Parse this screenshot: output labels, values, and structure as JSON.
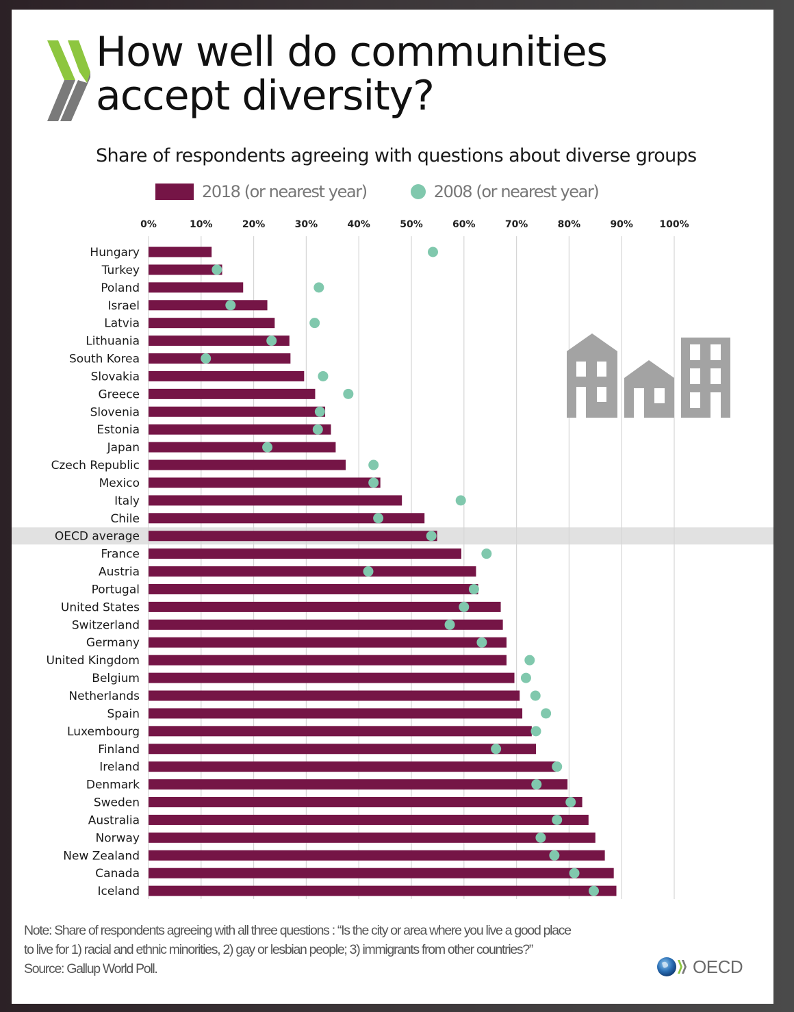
{
  "header": {
    "title_line1": "How well do communities",
    "title_line2": "accept diversity?",
    "subtitle": "Share of respondents agreeing with questions about diverse groups"
  },
  "legend": {
    "series_2018": "2018 (or nearest year)",
    "series_2008": "2008 (or nearest year)"
  },
  "colors": {
    "bar_2018": "#751546",
    "dot_2008": "#80c8ad",
    "highlight_band": "#e1e1e1",
    "gridline": "#d6d6d6",
    "building_icon": "#a3a3a3",
    "logo_green": "#8dc63f",
    "logo_gray": "#7a7a7a"
  },
  "chart_data": {
    "type": "bar",
    "orientation": "horizontal",
    "title": "How well do communities accept diversity?",
    "subtitle": "Share of respondents agreeing with questions about diverse groups",
    "xlabel": "",
    "ylabel": "",
    "xlim": [
      0,
      100
    ],
    "x_ticks": [
      "0%",
      "10%",
      "20%",
      "30%",
      "40%",
      "50%",
      "60%",
      "70%",
      "80%",
      "90%",
      "100%"
    ],
    "grid": true,
    "legend_position": "top",
    "highlight_category": "OECD average",
    "categories": [
      "Hungary",
      "Turkey",
      "Poland",
      "Israel",
      "Latvia",
      "Lithuania",
      "South Korea",
      "Slovakia",
      "Greece",
      "Slovenia",
      "Estonia",
      "Japan",
      "Czech Republic",
      "Mexico",
      "Italy",
      "Chile",
      "OECD average",
      "France",
      "Austria",
      "Portugal",
      "United States",
      "Switzerland",
      "Germany",
      "United Kingdom",
      "Belgium",
      "Netherlands",
      "Spain",
      "Luxembourg",
      "Finland",
      "Ireland",
      "Denmark",
      "Sweden",
      "Australia",
      "Norway",
      "New Zealand",
      "Canada",
      "Iceland"
    ],
    "series": [
      {
        "name": "2018 (or nearest year)",
        "mark": "bar",
        "values": [
          12,
          14,
          18,
          22.6,
          24,
          26.8,
          27,
          29.6,
          31.7,
          33.6,
          34.7,
          35.6,
          37.5,
          44.1,
          48.2,
          52.5,
          54.9,
          59.5,
          62.3,
          62.7,
          67,
          67.4,
          68.1,
          68.1,
          69.6,
          70.6,
          71.1,
          72.9,
          73.7,
          77.5,
          79.7,
          82.5,
          83.7,
          85,
          86.8,
          88.5,
          89
        ]
      },
      {
        "name": "2008 (or nearest year)",
        "mark": "dot",
        "values": [
          54.1,
          13,
          32.4,
          15.6,
          31.6,
          23.4,
          10.9,
          33.2,
          38,
          32.6,
          32.2,
          22.6,
          42.8,
          42.8,
          59.4,
          43.7,
          53.8,
          64.3,
          41.8,
          61.9,
          60,
          57.3,
          63.4,
          72.5,
          71.8,
          73.6,
          75.6,
          73.7,
          66.1,
          77.7,
          73.8,
          80.3,
          77.7,
          74.6,
          77.2,
          81,
          84.7
        ]
      }
    ]
  },
  "footer": {
    "note_line1": "Note: Share of respondents agreeing with all three questions : “Is the city or area where you live a good place",
    "note_line2": "to live for 1) racial and ethnic minorities, 2) gay or lesbian people; 3) immigrants from other countries?”",
    "source": "Source: Gallup World Poll.",
    "brand": "OECD"
  }
}
